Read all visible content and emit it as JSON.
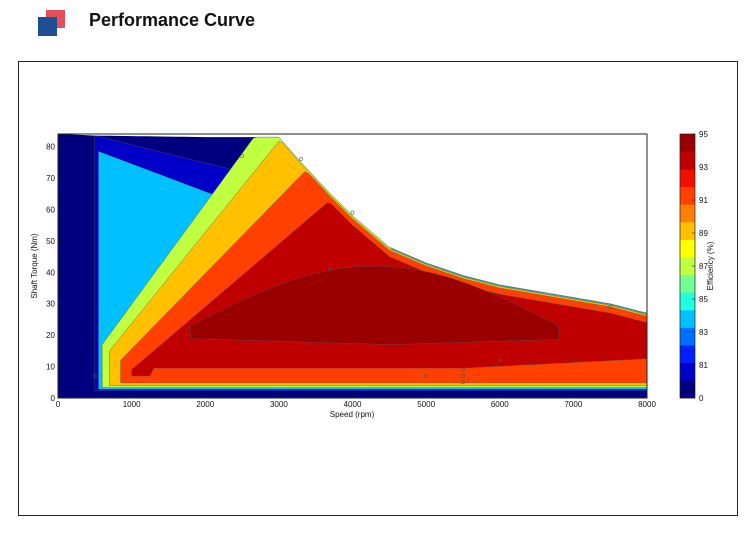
{
  "header": {
    "title": "Performance Curve",
    "logo_colors": {
      "back": "#e3505b",
      "front": "#1f4f93"
    }
  },
  "chart_data": {
    "type": "heatmap",
    "subtype": "efficiency contour map",
    "xlabel": "Speed  (rpm)",
    "ylabel": "Shaft Torque  (Nm)",
    "xlim": [
      0,
      8000
    ],
    "ylim": [
      0,
      84
    ],
    "x_ticks": [
      0,
      1000,
      2000,
      3000,
      4000,
      5000,
      6000,
      7000,
      8000
    ],
    "y_ticks": [
      0,
      10,
      20,
      30,
      40,
      50,
      60,
      70,
      80
    ],
    "colorbar": {
      "label": "Efficiency (%)",
      "levels": [
        0,
        81,
        82,
        83,
        84,
        85,
        86,
        87,
        88,
        89,
        90,
        91,
        92,
        93,
        94,
        95
      ],
      "tick_labels": [
        "95",
        "93",
        "91",
        "89",
        "87",
        "85",
        "83",
        "81",
        "0"
      ],
      "colors": [
        "#00007f",
        "#0000c8",
        "#0020ff",
        "#0070ff",
        "#00c0ff",
        "#20ffe0",
        "#70ff90",
        "#c0ff40",
        "#ffff00",
        "#ffc000",
        "#ff8000",
        "#ff4000",
        "#f01000",
        "#c00000",
        "#9a0000"
      ]
    },
    "operating_envelope": {
      "speed": [
        0,
        500,
        2000,
        2500,
        3000,
        3300,
        3700,
        4000,
        4500,
        5000,
        5500,
        6000,
        7000,
        7500,
        8000
      ],
      "max_torque": [
        84,
        83.5,
        83,
        83,
        83,
        75,
        65,
        58,
        48,
        43,
        39,
        36,
        32,
        30,
        27
      ]
    },
    "regions": [
      {
        "efficiency_min": 0,
        "speed": [
          0,
          8000
        ]
      },
      {
        "efficiency_min": 81,
        "speed": [
          500,
          8000
        ]
      },
      {
        "efficiency_min": 84,
        "speed": [
          550,
          8000
        ]
      },
      {
        "efficiency_min": 87,
        "speed": [
          600,
          8000
        ]
      },
      {
        "efficiency_min": 89,
        "speed": [
          700,
          8000
        ]
      },
      {
        "efficiency_min": 91,
        "speed": [
          850,
          8000
        ]
      },
      {
        "efficiency_min": 93,
        "speed": [
          1000,
          8000
        ]
      },
      {
        "efficiency_min": 94,
        "speed": [
          1800,
          6800
        ]
      }
    ],
    "measured_points": [
      {
        "speed": 2500,
        "torque": 77
      },
      {
        "speed": 3300,
        "torque": 76
      },
      {
        "speed": 4000,
        "torque": 59
      },
      {
        "speed": 3700,
        "torque": 41
      },
      {
        "speed": 6000,
        "torque": 12
      },
      {
        "speed": 5500,
        "torque": 9
      },
      {
        "speed": 5500,
        "torque": 7
      },
      {
        "speed": 5000,
        "torque": 7
      },
      {
        "speed": 5500,
        "torque": 5
      },
      {
        "speed": 7500,
        "torque": 29
      },
      {
        "speed": 500,
        "torque": 7
      }
    ]
  }
}
